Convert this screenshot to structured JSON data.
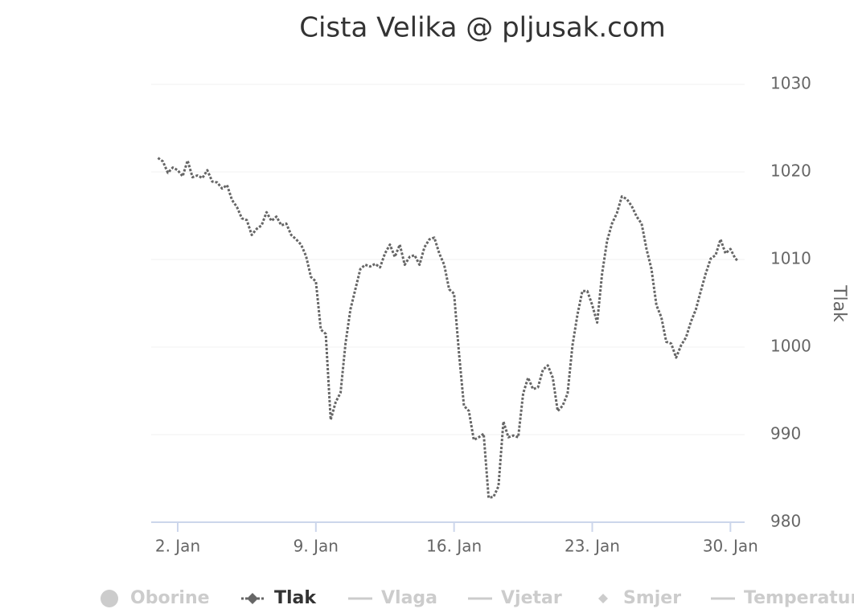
{
  "chart_data": {
    "type": "line",
    "title": "Cista Velika @ pljusak.com",
    "y_axis_title": "Tlak",
    "x": [
      1,
      1.25,
      1.5,
      1.75,
      2,
      2.25,
      2.5,
      2.75,
      3,
      3.25,
      3.5,
      3.75,
      4,
      4.25,
      4.5,
      4.75,
      5,
      5.25,
      5.5,
      5.75,
      6,
      6.25,
      6.5,
      6.75,
      7,
      7.25,
      7.5,
      7.75,
      8,
      8.25,
      8.5,
      8.75,
      9,
      9.25,
      9.5,
      9.75,
      10,
      10.25,
      10.5,
      10.75,
      11,
      11.25,
      11.5,
      11.75,
      12,
      12.25,
      12.5,
      12.75,
      13,
      13.25,
      13.5,
      13.75,
      14,
      14.25,
      14.5,
      14.75,
      15,
      15.25,
      15.5,
      15.75,
      16,
      16.25,
      16.5,
      16.75,
      17,
      17.25,
      17.5,
      17.75,
      18,
      18.25,
      18.5,
      18.75,
      19,
      19.25,
      19.5,
      19.75,
      20,
      20.25,
      20.5,
      20.75,
      21,
      21.25,
      21.5,
      21.75,
      22,
      22.25,
      22.5,
      22.75,
      23,
      23.25,
      23.5,
      23.75,
      24,
      24.25,
      24.5,
      24.75,
      25,
      25.25,
      25.5,
      25.75,
      26,
      26.25,
      26.5,
      26.75,
      27,
      27.25,
      27.5,
      27.75,
      28,
      28.25,
      28.5,
      28.75,
      29,
      29.25,
      29.5,
      29.75,
      30,
      30.25,
      30.4
    ],
    "series": [
      {
        "name": "Oborine",
        "visible": false,
        "symbol": "circle",
        "color": "#cccccc"
      },
      {
        "name": "Tlak",
        "visible": true,
        "symbol": "dash-diamond",
        "color": "#666666",
        "values": [
          1021.6,
          1021.2,
          1019.9,
          1020.5,
          1020.2,
          1019.5,
          1021.3,
          1019.4,
          1019.6,
          1019.3,
          1020.2,
          1018.9,
          1018.8,
          1018.1,
          1018.5,
          1016.8,
          1016,
          1014.7,
          1014.5,
          1012.8,
          1013.5,
          1013.9,
          1015.4,
          1014.4,
          1014.9,
          1013.9,
          1014.1,
          1012.8,
          1012.3,
          1011.7,
          1010.4,
          1008,
          1007.5,
          1002,
          1001.5,
          991.7,
          993.7,
          994.8,
          1000.4,
          1004.3,
          1006.6,
          1008.9,
          1009.4,
          1009.2,
          1009.5,
          1009.1,
          1010.7,
          1011.7,
          1010.3,
          1011.7,
          1009.4,
          1010.3,
          1010.5,
          1009.4,
          1011.4,
          1012.3,
          1012.5,
          1010.7,
          1009.4,
          1006.6,
          1006.1,
          999.3,
          993.3,
          992.7,
          989.4,
          989.7,
          990.1,
          982.8,
          982.9,
          984.1,
          991.5,
          989.7,
          989.9,
          989.7,
          994.7,
          996.5,
          995.2,
          995.4,
          997.4,
          997.9,
          996.5,
          992.7,
          993.3,
          994.7,
          1000.2,
          1003.7,
          1006.4,
          1006.4,
          1004.8,
          1002.8,
          1008.4,
          1012.1,
          1014.1,
          1015.3,
          1017.2,
          1016.9,
          1016.1,
          1014.9,
          1014.1,
          1011.2,
          1008.9,
          1004.8,
          1003.4,
          1000.6,
          1000.4,
          998.8,
          1000.2,
          1001.1,
          1002.9,
          1004.3,
          1006.4,
          1008.4,
          1010.1,
          1010.5,
          1012.3,
          1010.7,
          1011.2,
          1010.1,
          1009.8
        ]
      },
      {
        "name": "Vlaga",
        "visible": false,
        "symbol": "line",
        "color": "#cccccc"
      },
      {
        "name": "Vjetar",
        "visible": false,
        "symbol": "line",
        "color": "#cccccc"
      },
      {
        "name": "Smjer",
        "visible": false,
        "symbol": "diamond",
        "color": "#cccccc"
      },
      {
        "name": "Temperatura",
        "visible": false,
        "symbol": "line",
        "color": "#cccccc"
      }
    ],
    "xlim": [
      0.656,
      30.72
    ],
    "xticks": [
      {
        "value": 2,
        "label": "2. Jan"
      },
      {
        "value": 9,
        "label": "9. Jan"
      },
      {
        "value": 16,
        "label": "16. Jan"
      },
      {
        "value": 23,
        "label": "23. Jan"
      },
      {
        "value": 30,
        "label": "30. Jan"
      }
    ],
    "ylim": [
      980,
      1030
    ],
    "yticks": [
      980,
      990,
      1000,
      1010,
      1020,
      1030
    ],
    "grid": true,
    "y_axis_side": "right",
    "legend": "bottom"
  }
}
